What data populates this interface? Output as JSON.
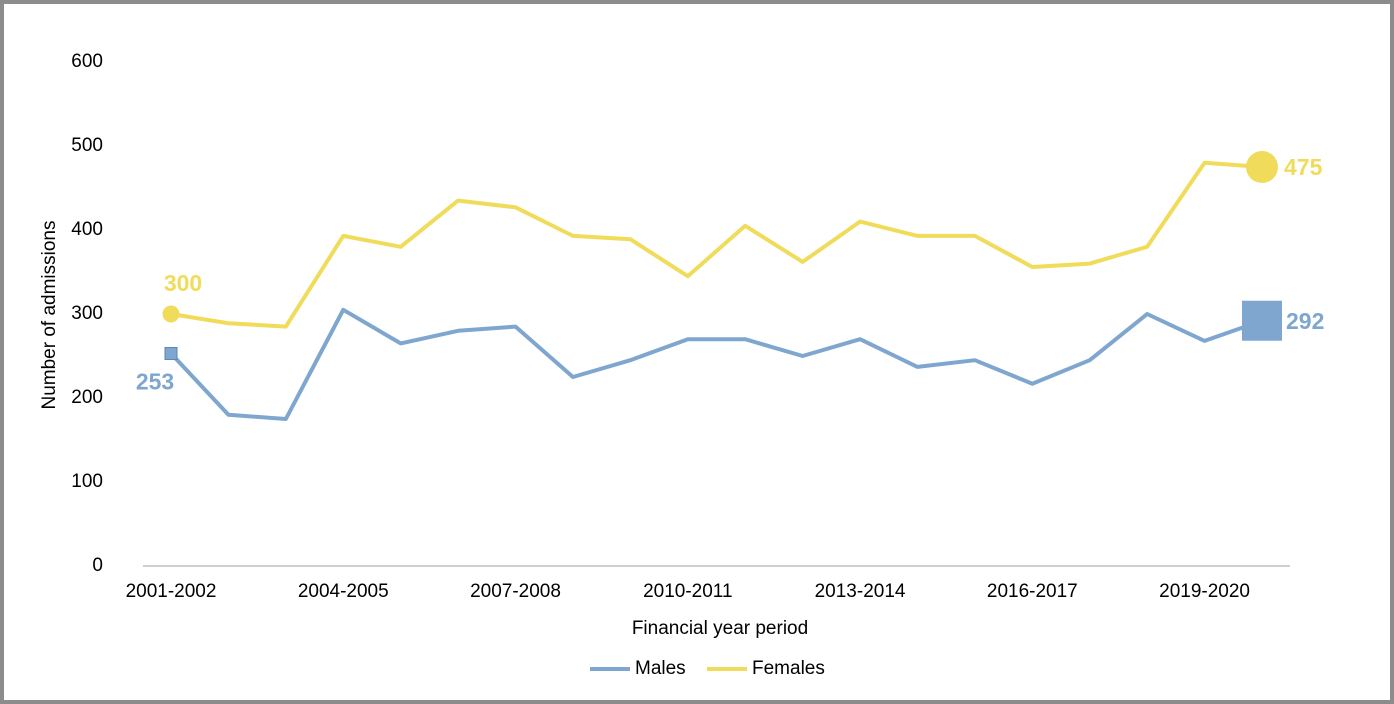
{
  "chart_data": {
    "type": "line",
    "x_label": "Financial year period",
    "y_label": "Number of admissions",
    "categories": [
      "2001-2002",
      null,
      null,
      "2004-2005",
      null,
      null,
      "2007-2008",
      null,
      null,
      "2010-2011",
      null,
      null,
      "2013-2014",
      null,
      null,
      "2016-2017",
      null,
      null,
      "2019-2020",
      null
    ],
    "series": [
      {
        "name": "Males",
        "color": "#7ea6cf",
        "marker": "square",
        "values": [
          253,
          180,
          175,
          305,
          265,
          280,
          285,
          225,
          245,
          270,
          270,
          250,
          270,
          237,
          245,
          217,
          245,
          300,
          268,
          292
        ]
      },
      {
        "name": "Females",
        "color": "#f0dc5a",
        "marker": "circle",
        "values": [
          300,
          289,
          285,
          393,
          380,
          435,
          427,
          393,
          389,
          345,
          405,
          362,
          410,
          393,
          393,
          356,
          360,
          380,
          480,
          475
        ]
      }
    ],
    "ylim": [
      0,
      600
    ],
    "yticks": [
      0,
      100,
      200,
      300,
      400,
      500,
      600
    ],
    "grid": false,
    "legend": "bottom"
  }
}
